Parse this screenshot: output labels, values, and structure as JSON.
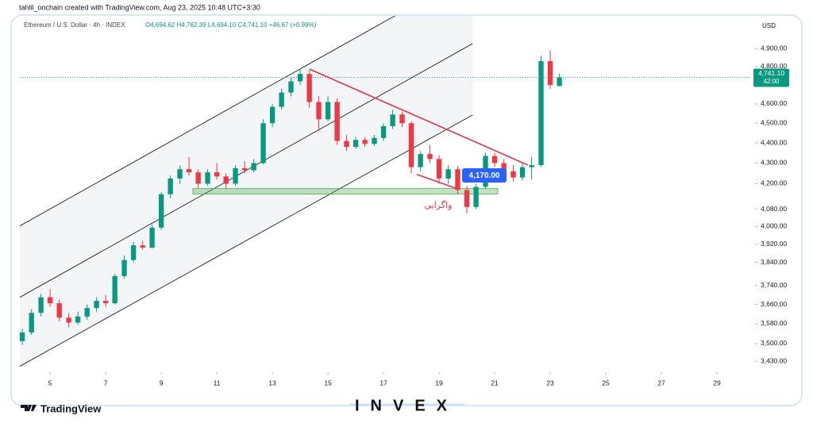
{
  "chart_data": {
    "type": "candlestick",
    "credit": "tahlil_onchain created with TradingView.com, Aug 23, 2025 10:48 UTC+3:30",
    "legend": "Ethereum / U.S. Dollar · 4h · INDEX",
    "ohlc_text": "O4,694.62 H4,762.39 L4,694.10 C4,741.10 +46.67 (+0.99%)",
    "currency": "USD",
    "log_scale": true,
    "grid": false,
    "up_color": "#089981",
    "down_color": "#f23645",
    "xlim": [
      3.91,
      30.2
    ],
    "ylim": [
      3400,
      5040
    ],
    "xticks": [
      5,
      7,
      9,
      11,
      13,
      15,
      17,
      19,
      21,
      23,
      25,
      27,
      29
    ],
    "yticks": [
      {
        "value": 4900,
        "label": "4,900.00"
      },
      {
        "value": 4800,
        "label": "4,800.00"
      },
      {
        "value": 4600,
        "label": "4,600.00"
      },
      {
        "value": 4500,
        "label": "4,500.00"
      },
      {
        "value": 4400,
        "label": "4,400.00"
      },
      {
        "value": 4300,
        "label": "4,300.00"
      },
      {
        "value": 4200,
        "label": "4,200.00"
      },
      {
        "value": 4080,
        "label": "4,080.00"
      },
      {
        "value": 4000,
        "label": "4,000.00"
      },
      {
        "value": 3920,
        "label": "3,920.00"
      },
      {
        "value": 3840,
        "label": "3,840.00"
      },
      {
        "value": 3740,
        "label": "3,740.00"
      },
      {
        "value": 3660,
        "label": "3,660.00"
      },
      {
        "value": 3580,
        "label": "3,580.00"
      },
      {
        "value": 3500,
        "label": "3,500.00"
      },
      {
        "value": 3430,
        "label": "3,430.00"
      }
    ],
    "x": [
      4.0,
      4.33,
      4.67,
      5.0,
      5.33,
      5.67,
      6.0,
      6.33,
      6.67,
      7.0,
      7.33,
      7.67,
      8.0,
      8.33,
      8.67,
      9.0,
      9.33,
      9.67,
      10.0,
      10.33,
      10.67,
      11.0,
      11.33,
      11.67,
      12.0,
      12.33,
      12.67,
      13.0,
      13.33,
      13.67,
      14.0,
      14.33,
      14.67,
      15.0,
      15.33,
      15.67,
      16.0,
      16.33,
      16.67,
      17.0,
      17.33,
      17.67,
      18.0,
      18.33,
      18.67,
      19.0,
      19.33,
      19.67,
      20.0,
      20.33,
      20.67,
      21.0,
      21.33,
      21.67,
      22.0,
      22.33,
      22.67,
      23.0,
      23.33
    ],
    "open": [
      3510,
      3545,
      3625,
      3690,
      3665,
      3605,
      3585,
      3610,
      3645,
      3675,
      3665,
      3780,
      3850,
      3915,
      3905,
      3995,
      4150,
      4225,
      4270,
      4255,
      4200,
      4255,
      4235,
      4200,
      4275,
      4265,
      4300,
      4500,
      4585,
      4660,
      4720,
      4760,
      4610,
      4520,
      4610,
      4410,
      4380,
      4415,
      4395,
      4425,
      4485,
      4545,
      4500,
      4280,
      4345,
      4320,
      4225,
      4270,
      4170,
      4090,
      4185,
      4335,
      4300,
      4260,
      4230,
      4280,
      4290,
      4830,
      4694.62
    ],
    "high": [
      3560,
      3640,
      3705,
      3725,
      3680,
      3625,
      3630,
      3660,
      3690,
      3700,
      3790,
      3870,
      3930,
      3935,
      4010,
      4160,
      4240,
      4290,
      4330,
      4270,
      4270,
      4300,
      4250,
      4290,
      4310,
      4320,
      4520,
      4600,
      4680,
      4740,
      4790,
      4780,
      4640,
      4640,
      4630,
      4440,
      4430,
      4430,
      4440,
      4500,
      4570,
      4560,
      4510,
      4360,
      4390,
      4340,
      4290,
      4285,
      4190,
      4200,
      4350,
      4350,
      4320,
      4290,
      4300,
      4330,
      4860,
      4890,
      4762.39
    ],
    "low": [
      3495,
      3535,
      3610,
      3650,
      3590,
      3565,
      3575,
      3595,
      3630,
      3650,
      3660,
      3770,
      3840,
      3895,
      3900,
      3985,
      4130,
      4200,
      4240,
      4180,
      4190,
      4220,
      4175,
      4190,
      4250,
      4255,
      4295,
      4480,
      4570,
      4640,
      4700,
      4580,
      4460,
      4510,
      4390,
      4360,
      4370,
      4380,
      4385,
      4410,
      4470,
      4480,
      4250,
      4260,
      4300,
      4200,
      4200,
      4150,
      4060,
      4080,
      4175,
      4280,
      4240,
      4210,
      4215,
      4220,
      4280,
      4680,
      4694.1
    ],
    "close": [
      3545,
      3625,
      3690,
      3665,
      3605,
      3585,
      3610,
      3645,
      3675,
      3665,
      3780,
      3850,
      3915,
      3905,
      3995,
      4150,
      4225,
      4270,
      4255,
      4200,
      4255,
      4235,
      4200,
      4275,
      4265,
      4300,
      4500,
      4585,
      4660,
      4720,
      4760,
      4610,
      4520,
      4610,
      4410,
      4380,
      4415,
      4395,
      4425,
      4485,
      4545,
      4500,
      4280,
      4345,
      4320,
      4225,
      4270,
      4170,
      4090,
      4185,
      4335,
      4300,
      4260,
      4230,
      4280,
      4290,
      4830,
      4700,
      4741.1
    ],
    "channel_lines": [
      {
        "x": [
          3.91,
          20.2
        ],
        "y": [
          4003,
          5344
        ]
      },
      {
        "x": [
          3.91,
          20.2
        ],
        "y": [
          3690,
          4927
        ]
      },
      {
        "x": [
          3.91,
          20.2
        ],
        "y": [
          3411,
          4542
        ]
      }
    ],
    "trend_lines": [
      {
        "x": [
          14.34,
          22.2
        ],
        "y": [
          4786,
          4290
        ]
      },
      {
        "x": [
          18.2,
          19.63
        ],
        "y": [
          4245,
          4177
        ]
      }
    ],
    "zone": {
      "x": [
        10.14,
        21.11
      ],
      "y": [
        4151,
        4177
      ]
    },
    "price_label": {
      "value": 4741.1,
      "label": "4,741.10"
    },
    "countdown": "42:00",
    "callout": "4,170.00",
    "divergence_label": "واگرایی",
    "brand": "TradingView",
    "watermark": "INVEX"
  }
}
